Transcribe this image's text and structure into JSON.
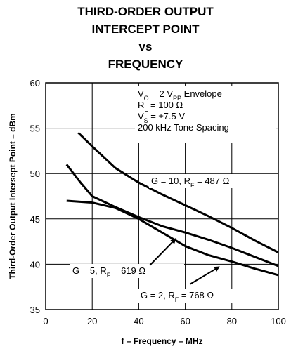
{
  "chart_data": {
    "type": "line",
    "title": [
      "THIRD-ORDER OUTPUT",
      "INTERCEPT POINT",
      "vs",
      "FREQUENCY"
    ],
    "x_label": "f – Frequency – MHz",
    "y_label": "Third-Order Output Intersept Point – dBm",
    "annotations": [
      [
        "V",
        "O",
        " = 2 V",
        "PP",
        " Envelope"
      ],
      [
        "R",
        "L",
        " = 100 Ω"
      ],
      [
        "V",
        "S",
        " = ±7.5 V"
      ],
      [
        "200 kHz Tone Spacing"
      ]
    ],
    "xlim": [
      0,
      100
    ],
    "xticks": [
      0,
      20,
      40,
      60,
      80,
      100
    ],
    "ylim": [
      35,
      60
    ],
    "yticks": [
      35,
      40,
      45,
      50,
      55,
      60
    ],
    "grid": true,
    "series": [
      {
        "name": [
          "G = 10, R",
          "F",
          " = 487 Ω"
        ],
        "color": "#000000",
        "x": [
          14,
          20,
          30,
          40,
          50,
          60,
          70,
          80,
          90,
          100
        ],
        "values": [
          54.5,
          53,
          50.6,
          49,
          47.7,
          46.5,
          45.3,
          44,
          42.6,
          41.3
        ]
      },
      {
        "name": [
          "G = 5, R",
          "F",
          " = 619 Ω"
        ],
        "color": "#000000",
        "x": [
          9,
          15,
          20,
          30,
          40,
          50,
          60,
          70,
          80,
          90,
          100
        ],
        "values": [
          51,
          49,
          47.5,
          46.3,
          45.2,
          44.2,
          43.5,
          42.7,
          41.8,
          40.8,
          39.8
        ]
      },
      {
        "name": [
          "G = 2, R",
          "F",
          " = 768 Ω"
        ],
        "color": "#000000",
        "x": [
          9,
          20,
          30,
          40,
          50,
          60,
          70,
          80,
          90,
          100
        ],
        "values": [
          47,
          46.8,
          46.2,
          45,
          43.5,
          42,
          41,
          40.3,
          39.5,
          38.8
        ]
      }
    ]
  }
}
